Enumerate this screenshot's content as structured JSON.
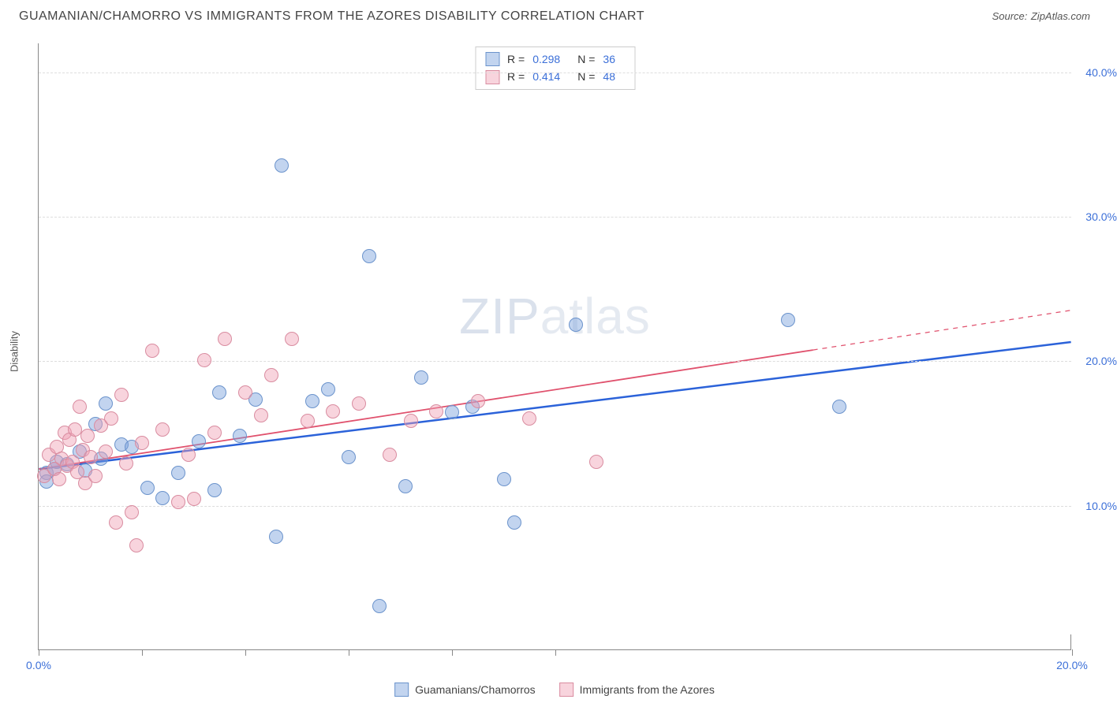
{
  "title": "GUAMANIAN/CHAMORRO VS IMMIGRANTS FROM THE AZORES DISABILITY CORRELATION CHART",
  "source_label": "Source:",
  "source_value": "ZipAtlas.com",
  "ylabel": "Disability",
  "watermark_a": "ZIP",
  "watermark_b": "atlas",
  "chart": {
    "type": "scatter",
    "xlim": [
      0,
      20
    ],
    "ylim": [
      0,
      42
    ],
    "yticks": [
      10,
      20,
      30,
      40
    ],
    "ytick_labels": [
      "10.0%",
      "20.0%",
      "30.0%",
      "40.0%"
    ],
    "xticks": [
      0,
      2,
      4,
      6,
      8,
      10,
      20
    ],
    "xtick_labels": {
      "0": "0.0%",
      "20": "20.0%"
    },
    "grid_color": "#dddddd",
    "axis_color": "#888888",
    "background_color": "#ffffff",
    "point_radius": 9,
    "series": [
      {
        "name": "Guamanians/Chamorros",
        "fill": "rgba(120,160,220,0.45)",
        "stroke": "#6b93cc",
        "R": "0.298",
        "N": "36",
        "trend": {
          "x1": 0,
          "y1": 12.5,
          "x2": 20,
          "y2": 21.3,
          "solid_until_x": 20,
          "color": "#2b62d9",
          "width": 2.5
        },
        "points": [
          [
            0.15,
            12.2
          ],
          [
            0.15,
            11.6
          ],
          [
            0.3,
            12.5
          ],
          [
            0.35,
            13.0
          ],
          [
            0.55,
            12.8
          ],
          [
            0.8,
            13.7
          ],
          [
            0.9,
            12.4
          ],
          [
            1.1,
            15.6
          ],
          [
            1.2,
            13.2
          ],
          [
            1.3,
            17.0
          ],
          [
            1.6,
            14.2
          ],
          [
            1.8,
            14.0
          ],
          [
            2.1,
            11.2
          ],
          [
            2.4,
            10.5
          ],
          [
            2.7,
            12.2
          ],
          [
            3.1,
            14.4
          ],
          [
            3.4,
            11.0
          ],
          [
            3.5,
            17.8
          ],
          [
            3.9,
            14.8
          ],
          [
            4.2,
            17.3
          ],
          [
            4.6,
            7.8
          ],
          [
            4.7,
            33.5
          ],
          [
            5.3,
            17.2
          ],
          [
            5.6,
            18.0
          ],
          [
            6.0,
            13.3
          ],
          [
            6.4,
            27.2
          ],
          [
            6.6,
            3.0
          ],
          [
            7.1,
            11.3
          ],
          [
            7.4,
            18.8
          ],
          [
            8.0,
            16.4
          ],
          [
            8.4,
            16.8
          ],
          [
            9.0,
            11.8
          ],
          [
            9.2,
            8.8
          ],
          [
            10.4,
            22.5
          ],
          [
            14.5,
            22.8
          ],
          [
            15.5,
            16.8
          ]
        ]
      },
      {
        "name": "Immigrants from the Azores",
        "fill": "rgba(240,160,180,0.45)",
        "stroke": "#d98ca0",
        "R": "0.414",
        "N": "48",
        "trend": {
          "x1": 0,
          "y1": 12.5,
          "x2": 20,
          "y2": 23.5,
          "solid_until_x": 15,
          "color": "#e0516d",
          "width": 1.8
        },
        "points": [
          [
            0.1,
            12.0
          ],
          [
            0.2,
            13.5
          ],
          [
            0.3,
            12.5
          ],
          [
            0.35,
            14.0
          ],
          [
            0.4,
            11.8
          ],
          [
            0.45,
            13.2
          ],
          [
            0.5,
            15.0
          ],
          [
            0.55,
            12.7
          ],
          [
            0.6,
            14.5
          ],
          [
            0.65,
            13.0
          ],
          [
            0.7,
            15.2
          ],
          [
            0.75,
            12.3
          ],
          [
            0.8,
            16.8
          ],
          [
            0.85,
            13.8
          ],
          [
            0.9,
            11.5
          ],
          [
            0.95,
            14.8
          ],
          [
            1.0,
            13.3
          ],
          [
            1.1,
            12.0
          ],
          [
            1.2,
            15.5
          ],
          [
            1.3,
            13.7
          ],
          [
            1.4,
            16.0
          ],
          [
            1.5,
            8.8
          ],
          [
            1.6,
            17.6
          ],
          [
            1.7,
            12.9
          ],
          [
            1.8,
            9.5
          ],
          [
            1.9,
            7.2
          ],
          [
            2.0,
            14.3
          ],
          [
            2.2,
            20.7
          ],
          [
            2.4,
            15.2
          ],
          [
            2.7,
            10.2
          ],
          [
            2.9,
            13.5
          ],
          [
            3.0,
            10.4
          ],
          [
            3.2,
            20.0
          ],
          [
            3.4,
            15.0
          ],
          [
            3.6,
            21.5
          ],
          [
            4.0,
            17.8
          ],
          [
            4.3,
            16.2
          ],
          [
            4.5,
            19.0
          ],
          [
            4.9,
            21.5
          ],
          [
            5.2,
            15.8
          ],
          [
            5.7,
            16.5
          ],
          [
            6.2,
            17.0
          ],
          [
            6.8,
            13.5
          ],
          [
            7.2,
            15.8
          ],
          [
            7.7,
            16.5
          ],
          [
            8.5,
            17.2
          ],
          [
            9.5,
            16.0
          ],
          [
            10.8,
            13.0
          ]
        ]
      }
    ]
  },
  "legend_top_label_R": "R =",
  "legend_top_label_N": "N =",
  "legend_bottom": [
    "Guamanians/Chamorros",
    "Immigrants from the Azores"
  ]
}
